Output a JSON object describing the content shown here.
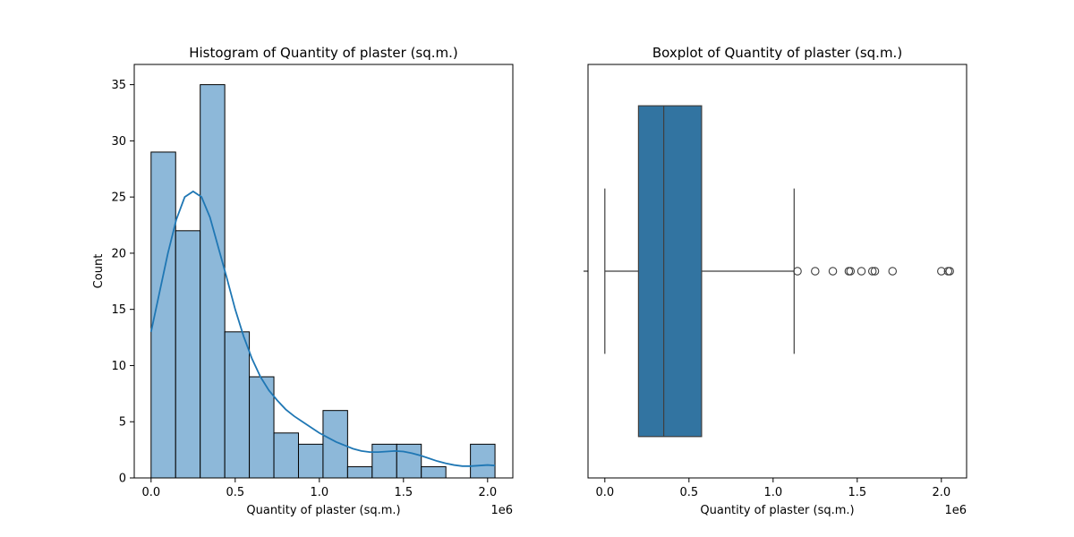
{
  "chart_data": [
    {
      "type": "bar",
      "title": "Histogram of Quantity of plaster (sq.m.)",
      "xlabel": "Quantity of plaster (sq.m.)",
      "ylabel": "Count",
      "x_offset_label": "1e6",
      "xlim": [
        -0.1,
        2.15
      ],
      "ylim": [
        0,
        36.8
      ],
      "xticks": [
        0.0,
        0.5,
        1.0,
        1.5,
        2.0
      ],
      "xtick_labels": [
        "0.0",
        "0.5",
        "1.0",
        "1.5",
        "2.0"
      ],
      "yticks": [
        0,
        5,
        10,
        15,
        20,
        25,
        30,
        35
      ],
      "ytick_labels": [
        "0",
        "5",
        "10",
        "15",
        "20",
        "25",
        "30",
        "35"
      ],
      "bin_edges": [
        0.0,
        0.146,
        0.292,
        0.438,
        0.584,
        0.73,
        0.876,
        1.022,
        1.168,
        1.314,
        1.46,
        1.606,
        1.752,
        1.898,
        2.044
      ],
      "counts": [
        29,
        22,
        35,
        13,
        9,
        4,
        3,
        6,
        1,
        3,
        3,
        1,
        0,
        3
      ],
      "bar_color": "#8db8d9",
      "kde": {
        "color": "#1f77b4",
        "x": [
          0.0,
          0.05,
          0.1,
          0.15,
          0.2,
          0.25,
          0.3,
          0.35,
          0.4,
          0.45,
          0.5,
          0.55,
          0.6,
          0.65,
          0.7,
          0.75,
          0.8,
          0.85,
          0.9,
          0.95,
          1.0,
          1.05,
          1.1,
          1.15,
          1.2,
          1.25,
          1.3,
          1.35,
          1.4,
          1.45,
          1.5,
          1.55,
          1.6,
          1.65,
          1.7,
          1.75,
          1.8,
          1.85,
          1.9,
          1.95,
          2.0,
          2.044
        ],
        "y": [
          13.0,
          16.5,
          20.0,
          23.0,
          25.0,
          25.5,
          25.0,
          23.2,
          20.5,
          17.8,
          15.0,
          12.6,
          10.6,
          9.0,
          7.8,
          6.9,
          6.1,
          5.5,
          5.0,
          4.5,
          4.0,
          3.6,
          3.2,
          2.9,
          2.6,
          2.4,
          2.3,
          2.3,
          2.35,
          2.4,
          2.35,
          2.2,
          2.0,
          1.75,
          1.5,
          1.3,
          1.15,
          1.05,
          1.05,
          1.1,
          1.15,
          1.1
        ]
      }
    },
    {
      "type": "boxplot",
      "title": "Boxplot of Quantity of plaster (sq.m.)",
      "xlabel": "Quantity of plaster (sq.m.)",
      "x_offset_label": "1e6",
      "xlim": [
        -0.1,
        2.15
      ],
      "xticks": [
        0.0,
        0.5,
        1.0,
        1.5,
        2.0
      ],
      "xtick_labels": [
        "0.0",
        "0.5",
        "1.0",
        "1.5",
        "2.0"
      ],
      "box_color": "#3274a1",
      "whisker_low": 0.0,
      "q1": 0.2,
      "median": 0.35,
      "q3": 0.575,
      "whisker_high": 1.125,
      "outliers": [
        1.145,
        1.25,
        1.355,
        1.45,
        1.46,
        1.525,
        1.59,
        1.605,
        1.71,
        2.0,
        2.04,
        2.05
      ]
    }
  ]
}
